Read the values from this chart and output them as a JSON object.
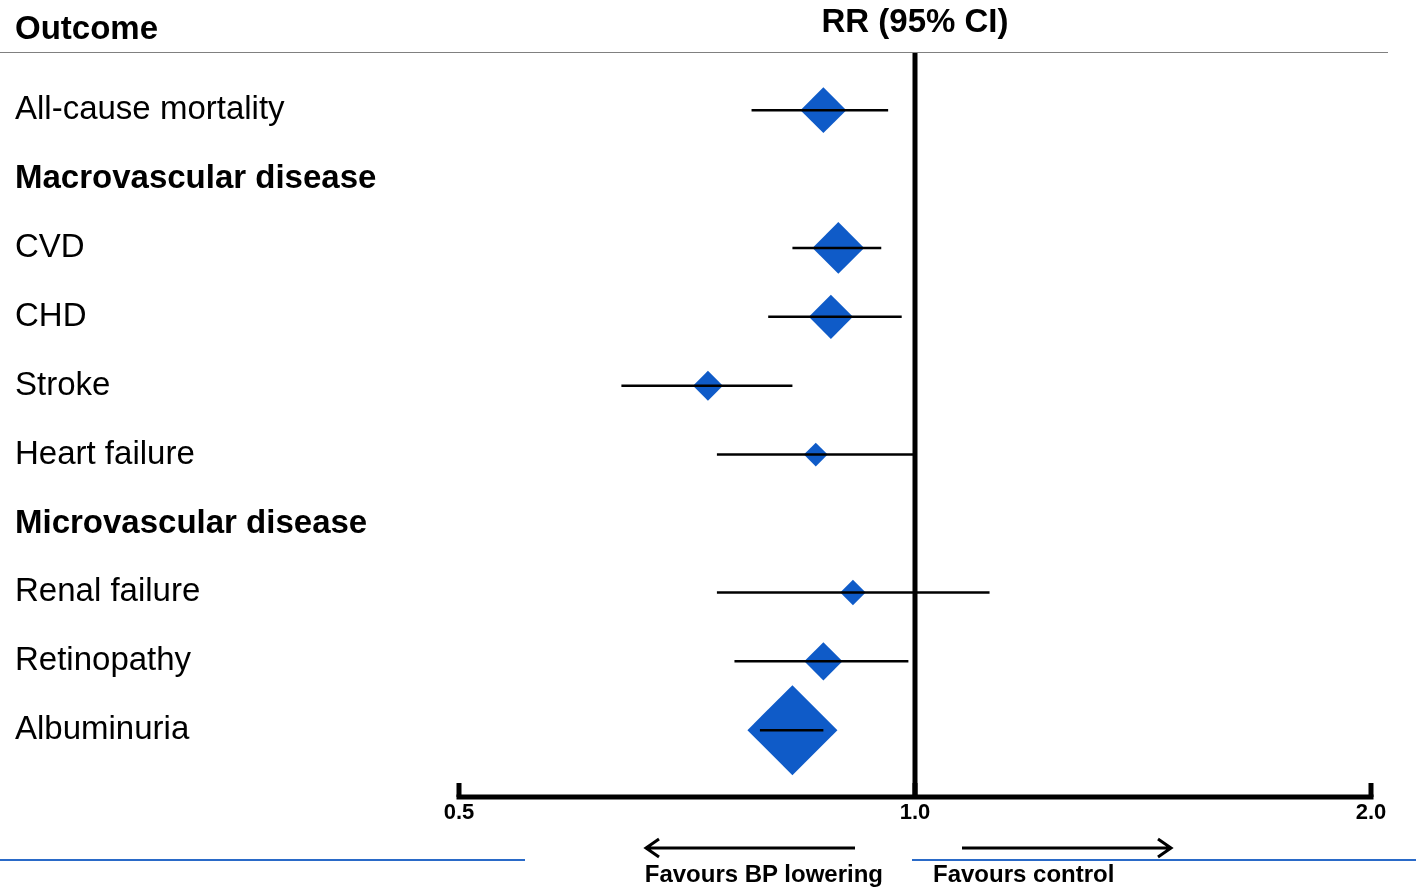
{
  "chart_data": {
    "type": "bubble",
    "orientation": "horizontal",
    "marker": "diamond",
    "title": "RR (95% CI)",
    "ylabel": "Outcome",
    "categories": [
      "All-cause mortality",
      "Macrovascular disease",
      "CVD",
      "CHD",
      "Stroke",
      "Heart failure",
      "Microvascular disease",
      "Renal failure",
      "Retinopathy",
      "Albuminuria"
    ],
    "values": [
      0.87,
      null,
      0.89,
      0.88,
      0.73,
      0.86,
      null,
      0.91,
      0.87,
      0.83
    ],
    "errors": [
      [
        0.78,
        0.96
      ],
      null,
      [
        0.83,
        0.95
      ],
      [
        0.8,
        0.98
      ],
      [
        0.64,
        0.83
      ],
      [
        0.74,
        1.0
      ],
      null,
      [
        0.74,
        1.12
      ],
      [
        0.76,
        0.99
      ],
      [
        0.79,
        0.87
      ]
    ],
    "sizes": [
      0.26,
      null,
      0.33,
      0.24,
      0.11,
      0.07,
      null,
      0.08,
      0.18,
      1
    ],
    "color": "#0f5bc8",
    "log": "x",
    "xlim": [
      0.5,
      2
    ],
    "xticks": [
      0.5,
      {
        "value": 1,
        "label": "1.0"
      },
      {
        "value": 2,
        "label": "2.0"
      }
    ],
    "ref_lines": [
      {
        "axis": "x",
        "value": 1,
        "color": "#000000"
      }
    ],
    "annotations": [
      "Favours BP lowering",
      "Favours control"
    ]
  }
}
